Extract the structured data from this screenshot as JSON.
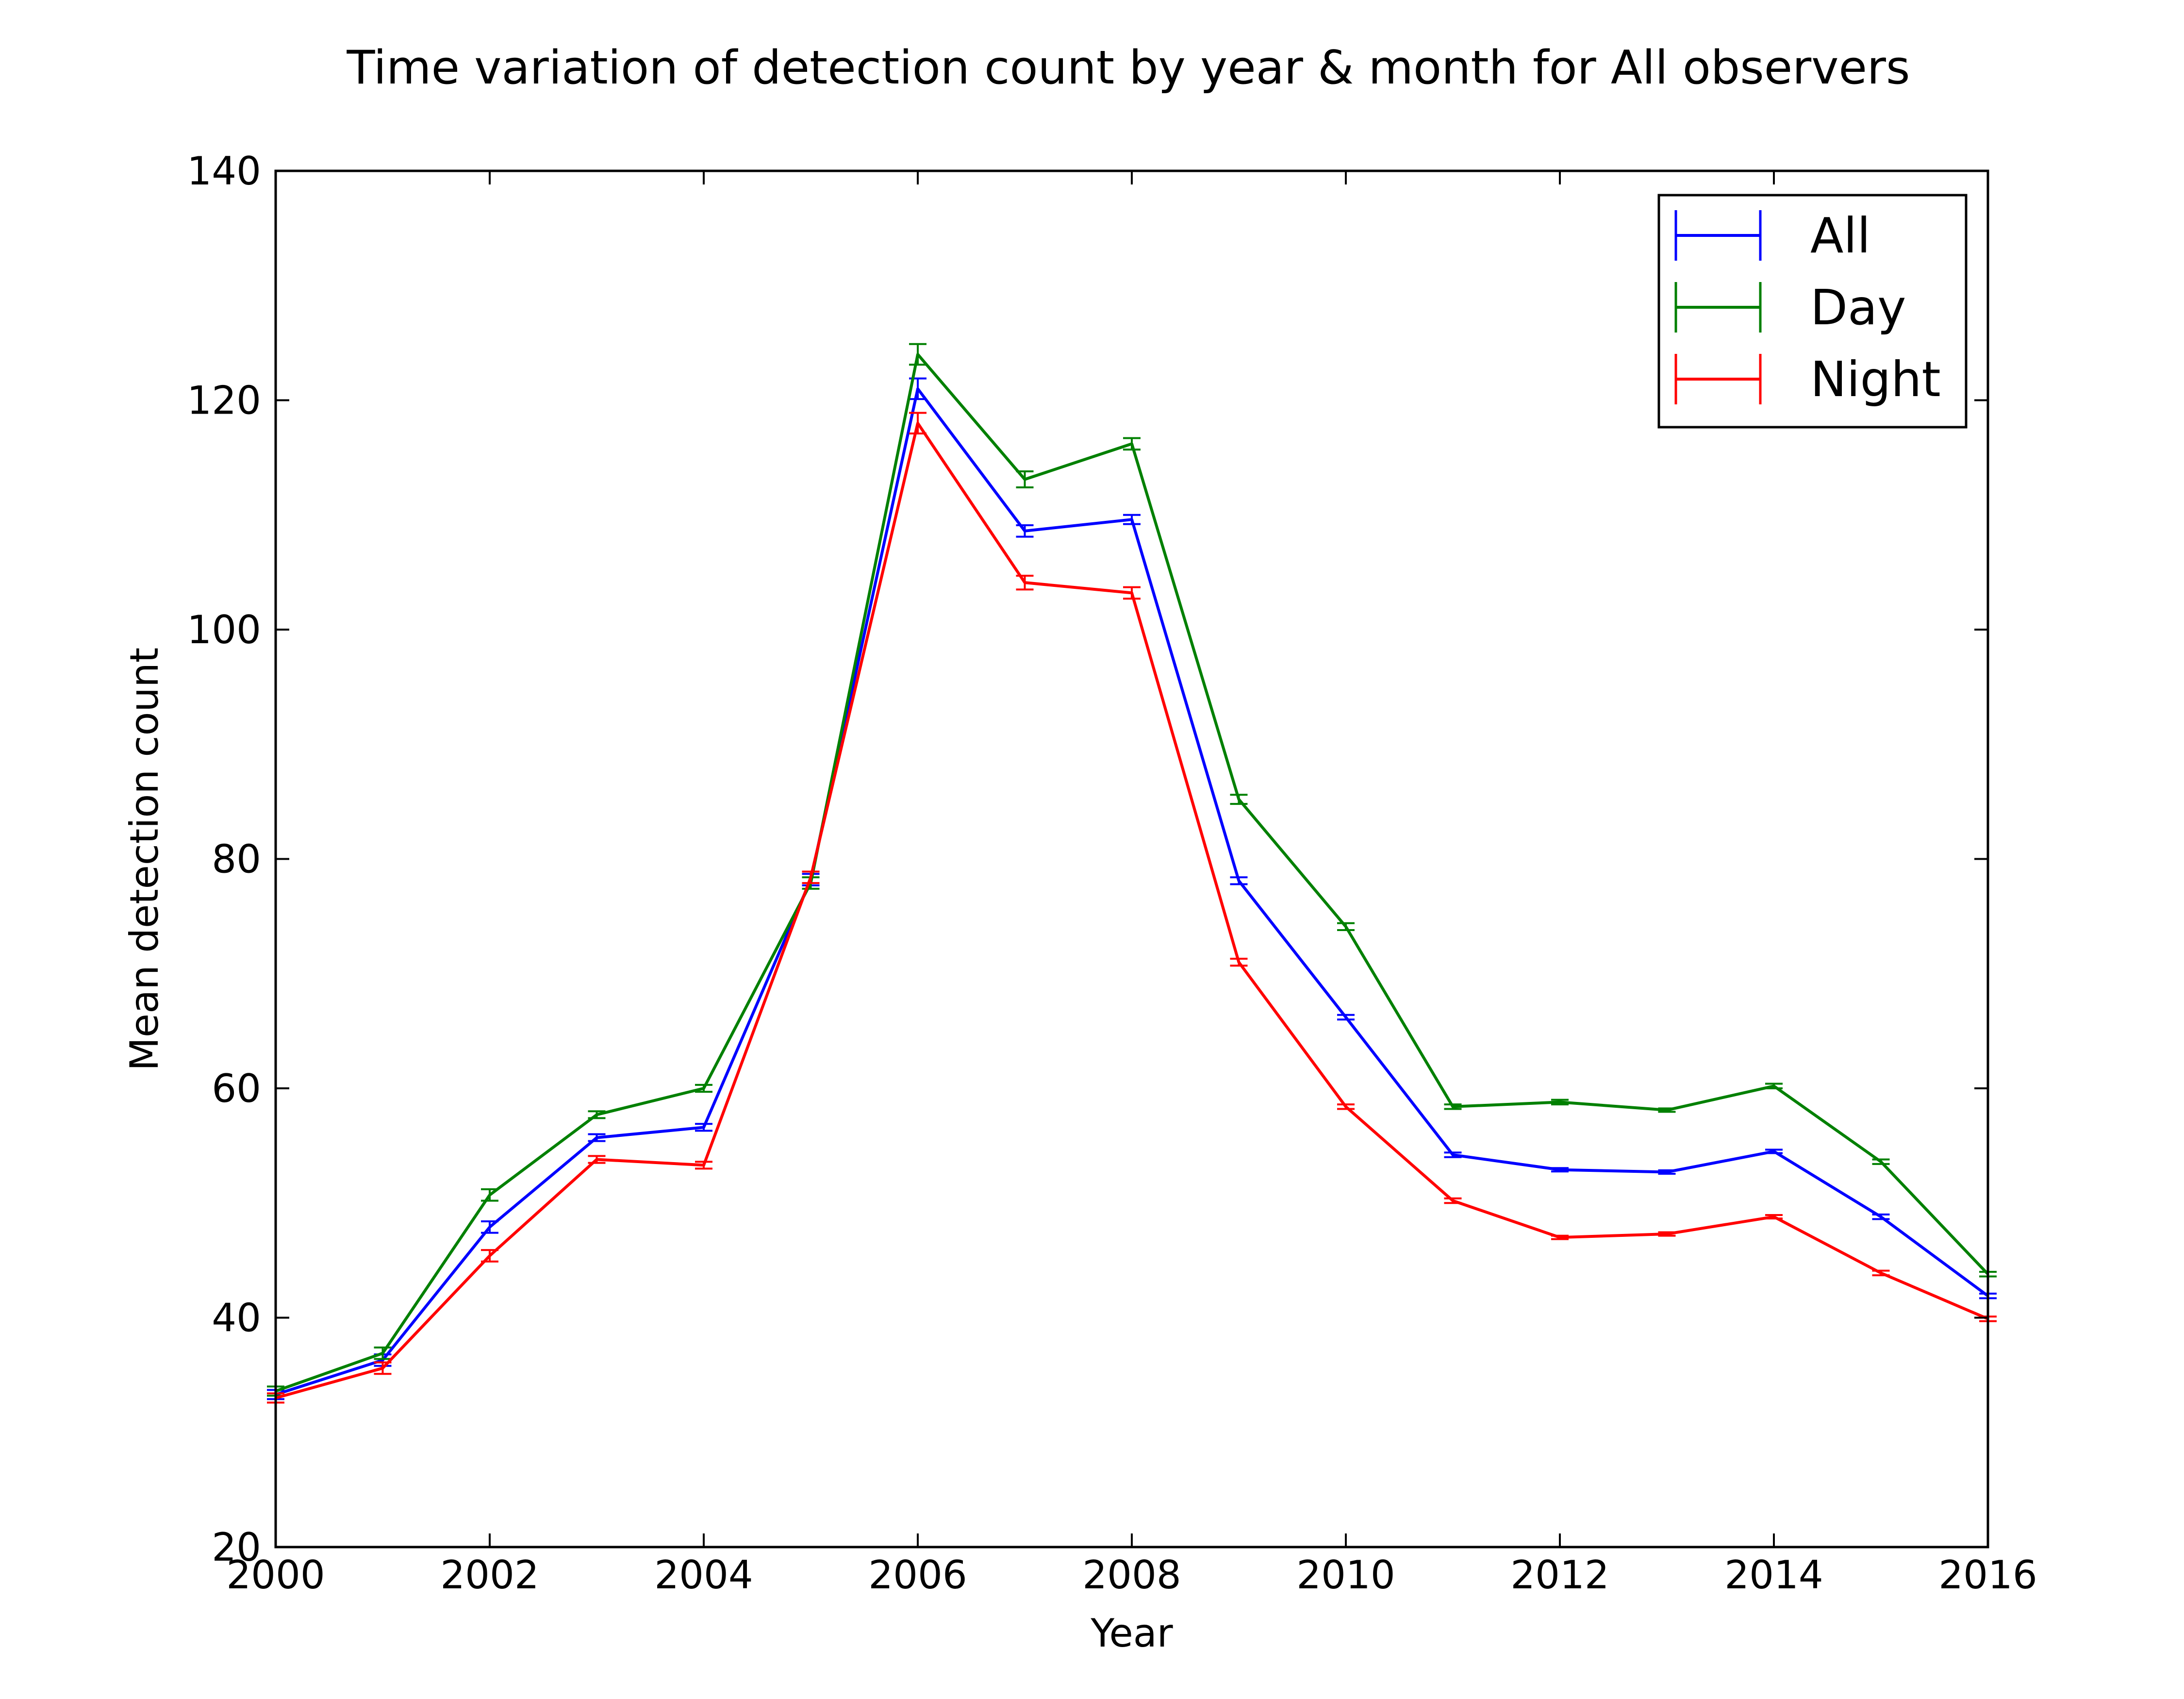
{
  "chart_data": {
    "type": "line",
    "title": "Time variation of detection count by year & month for All observers",
    "xlabel": "Year",
    "ylabel": "Mean detection count",
    "xlim": [
      2000,
      2016
    ],
    "ylim": [
      20,
      140
    ],
    "x_ticks": [
      "2000",
      "2002",
      "2004",
      "2006",
      "2008",
      "2010",
      "2012",
      "2014",
      "2016"
    ],
    "y_ticks": [
      "20",
      "40",
      "60",
      "80",
      "100",
      "120",
      "140"
    ],
    "x": [
      2000,
      2001,
      2002,
      2003,
      2004,
      2005,
      2006,
      2007,
      2008,
      2009,
      2010,
      2011,
      2012,
      2013,
      2014,
      2015,
      2016
    ],
    "error_bars": true,
    "grid": false,
    "legend_position": "top-right",
    "series": [
      {
        "name": "All",
        "color": "#0000ff",
        "values": [
          33.3,
          36.3,
          47.9,
          55.7,
          56.6,
          78.2,
          121.0,
          108.6,
          109.6,
          78.1,
          66.2,
          54.2,
          52.9,
          52.7,
          54.5,
          48.8,
          41.9
        ],
        "errors": [
          0.4,
          0.5,
          0.5,
          0.3,
          0.3,
          0.5,
          0.9,
          0.5,
          0.4,
          0.3,
          0.2,
          0.2,
          0.15,
          0.15,
          0.15,
          0.2,
          0.2
        ]
      },
      {
        "name": "Day",
        "color": "#008000",
        "values": [
          33.6,
          36.9,
          50.7,
          57.7,
          60.0,
          77.9,
          124.0,
          113.1,
          116.2,
          85.2,
          74.1,
          58.4,
          58.8,
          58.1,
          60.2,
          53.6,
          43.8
        ],
        "errors": [
          0.4,
          0.5,
          0.5,
          0.3,
          0.3,
          0.5,
          0.9,
          0.7,
          0.5,
          0.4,
          0.3,
          0.2,
          0.2,
          0.15,
          0.2,
          0.2,
          0.2
        ]
      },
      {
        "name": "Night",
        "color": "#ff0000",
        "values": [
          33.0,
          35.6,
          45.4,
          53.8,
          53.3,
          78.4,
          118.0,
          104.1,
          103.2,
          71.0,
          58.4,
          50.2,
          47.0,
          47.3,
          48.8,
          43.9,
          39.9
        ],
        "errors": [
          0.4,
          0.5,
          0.5,
          0.3,
          0.3,
          0.5,
          0.9,
          0.6,
          0.5,
          0.3,
          0.2,
          0.2,
          0.15,
          0.15,
          0.15,
          0.2,
          0.2
        ]
      }
    ]
  }
}
